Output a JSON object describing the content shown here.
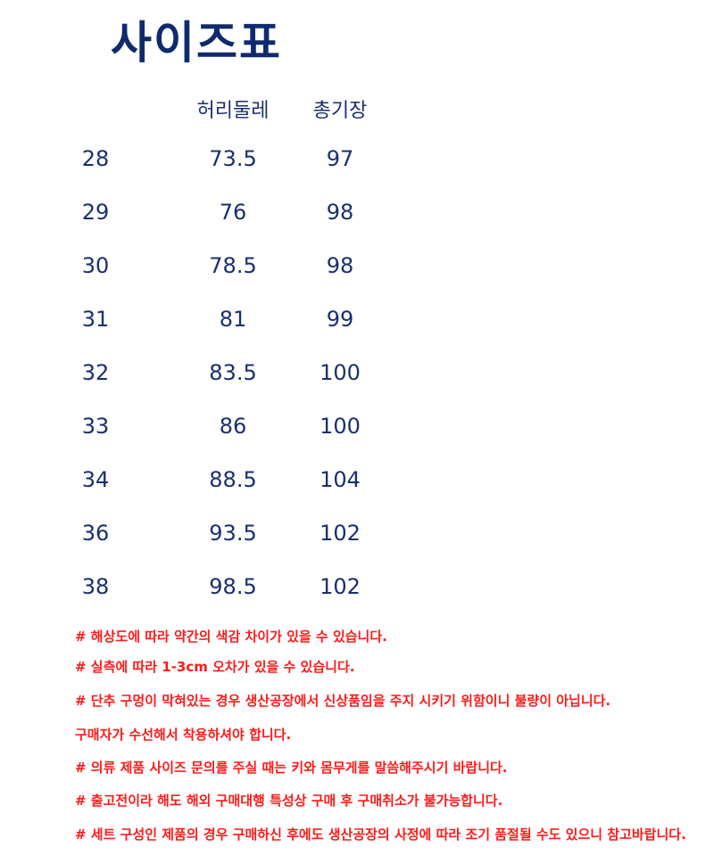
{
  "title": "사이즈표",
  "headers": [
    "",
    "허리둘레",
    "총기장"
  ],
  "rows": [
    [
      "28",
      "73.5",
      "97"
    ],
    [
      "29",
      "76",
      "98"
    ],
    [
      "30",
      "78.5",
      "98"
    ],
    [
      "31",
      "81",
      "99"
    ],
    [
      "32",
      "83.5",
      "100"
    ],
    [
      "33",
      "86",
      "100"
    ],
    [
      "34",
      "88.5",
      "104"
    ],
    [
      "36",
      "93.5",
      "102"
    ],
    [
      "38",
      "98.5",
      "102"
    ]
  ],
  "notes": [
    "# 해상도에 따라 약간의 색감 차이가 있을 수 있습니다.",
    "# 실측에 따라 1-3cm 오차가 있을 수 있습니다.",
    "# 단추 구멍이 막혀있는 경우 생산공장에서 신상품임을 주지 시키기 위함이니 불량이 아닙니다.",
    "구매자가 수선해서 착용하셔야 합니다.",
    "# 의류 제품 사이즈 문의를 주실 때는 키와 몸무게를 말씀해주시기 바랍니다.",
    "# 출고전이라 해도 해외 구매대행 특성상 구매 후 구매취소가 불가능합니다.",
    "# 세트 구성인 제품의 경우 구매하신 후에도 생산공장의 사정에 따라 조기 품절될 수도 있으니 참고바랍니다."
  ],
  "colors": {
    "title": "#0f2a6e",
    "text": "#1a2f6e",
    "notes": "#ff1a1a"
  }
}
